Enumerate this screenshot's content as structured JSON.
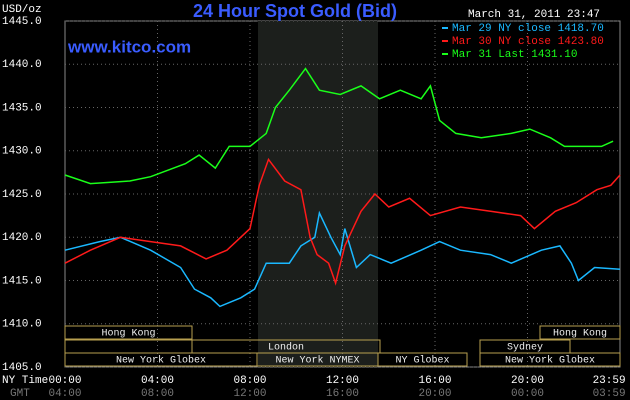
{
  "chart_data": {
    "type": "line",
    "title": "24 Hour Spot Gold (Bid)",
    "y_label": "USD/oz",
    "source": "www.kitco.com",
    "timestamp": "March 31, 2011 23:47",
    "x_label": "NY Time",
    "x2_label": "GMT",
    "grid": true,
    "xlim": [
      0,
      24
    ],
    "ylim": [
      1405,
      1445
    ],
    "yticks": [
      {
        "value": 1405,
        "label": "1405.0"
      },
      {
        "value": 1410,
        "label": "1410.0"
      },
      {
        "value": 1415,
        "label": "1415.0"
      },
      {
        "value": 1420,
        "label": "1420.0"
      },
      {
        "value": 1425,
        "label": "1425.0"
      },
      {
        "value": 1430,
        "label": "1430.0"
      },
      {
        "value": 1435,
        "label": "1435.0"
      },
      {
        "value": 1440,
        "label": "1440.0"
      },
      {
        "value": 1445,
        "label": "1445.0"
      }
    ],
    "xticks": [
      {
        "value": 0,
        "label": "00:00"
      },
      {
        "value": 4,
        "label": "04:00"
      },
      {
        "value": 8,
        "label": "08:00"
      },
      {
        "value": 12,
        "label": "12:00"
      },
      {
        "value": 16,
        "label": "16:00"
      },
      {
        "value": 20,
        "label": "20:00"
      },
      {
        "value": 23.983,
        "label": "23:59"
      }
    ],
    "gmt_ticks": [
      "04:00",
      "08:00",
      "12:00",
      "16:00",
      "20:00",
      "00:00",
      "03:59"
    ],
    "sessions": [
      {
        "label": "Hong Kong"
      },
      {
        "label": "London"
      },
      {
        "label": "New York Globex"
      },
      {
        "label": "New York NYMEX"
      },
      {
        "label": "NY Globex"
      },
      {
        "label": "Hong Kong"
      },
      {
        "label": "Sydney"
      },
      {
        "label": "New York Globex"
      }
    ],
    "series": [
      {
        "name": "Mar 29 NY close 1418.70",
        "color": "#1ab8ff",
        "x": [
          0,
          1.5,
          2.4,
          3.7,
          5.0,
          5.6,
          6.3,
          6.7,
          7.6,
          8.2,
          8.7,
          9.7,
          10.2,
          10.8,
          11.0,
          11.5,
          11.9,
          12.1,
          12.6,
          13.2,
          14.1,
          15.4,
          16.2,
          17.1,
          18.4,
          19.3,
          20.6,
          21.4,
          21.9,
          22.2,
          22.9,
          24.0
        ],
        "values": [
          1418.5,
          1419.5,
          1420,
          1418.5,
          1416.5,
          1414,
          1413,
          1412,
          1413,
          1414,
          1417,
          1417,
          1419,
          1420,
          1422.8,
          1420,
          1418,
          1421,
          1416.5,
          1418,
          1417,
          1418.5,
          1419.5,
          1418.5,
          1418,
          1417,
          1418.5,
          1419,
          1417,
          1415,
          1416.5,
          1416.3
        ]
      },
      {
        "name": "Mar 30 NY close 1423.80",
        "color": "#ff1a1a",
        "x": [
          0,
          1.1,
          2.4,
          3.7,
          5.0,
          6.1,
          7.0,
          8.0,
          8.4,
          8.8,
          9.5,
          10.2,
          10.6,
          10.9,
          11.4,
          11.7,
          12.1,
          12.8,
          13.4,
          14.0,
          14.9,
          15.8,
          17.1,
          18.4,
          19.7,
          20.3,
          21.2,
          22.1,
          23.0,
          23.6,
          24.0
        ],
        "values": [
          1417,
          1418.5,
          1420,
          1419.5,
          1419,
          1417.5,
          1418.5,
          1421,
          1426,
          1429,
          1426.5,
          1425.5,
          1420,
          1418,
          1417,
          1414.7,
          1419,
          1423,
          1425,
          1423.5,
          1424.5,
          1422.5,
          1423.5,
          1423,
          1422.5,
          1421,
          1423,
          1424,
          1425.5,
          1426,
          1427.2
        ]
      },
      {
        "name": "Mar 31 Last 1431.10",
        "color": "#1aff1a",
        "x": [
          0,
          1.1,
          2.8,
          3.7,
          5.2,
          5.8,
          6.5,
          7.1,
          8.0,
          8.7,
          9.1,
          9.7,
          10.4,
          11.0,
          11.9,
          12.8,
          13.6,
          14.5,
          15.4,
          15.8,
          16.2,
          16.9,
          18.0,
          19.3,
          20.1,
          21.0,
          21.6,
          22.5,
          23.2,
          23.7
        ],
        "values": [
          1427.2,
          1426.2,
          1426.5,
          1427,
          1428.5,
          1429.5,
          1428,
          1430.5,
          1430.5,
          1432,
          1435,
          1437,
          1439.5,
          1437,
          1436.5,
          1437.5,
          1436,
          1437,
          1436,
          1437.5,
          1433.5,
          1432,
          1431.5,
          1432,
          1432.5,
          1431.5,
          1430.5,
          1430.5,
          1430.5,
          1431.1
        ]
      }
    ]
  }
}
